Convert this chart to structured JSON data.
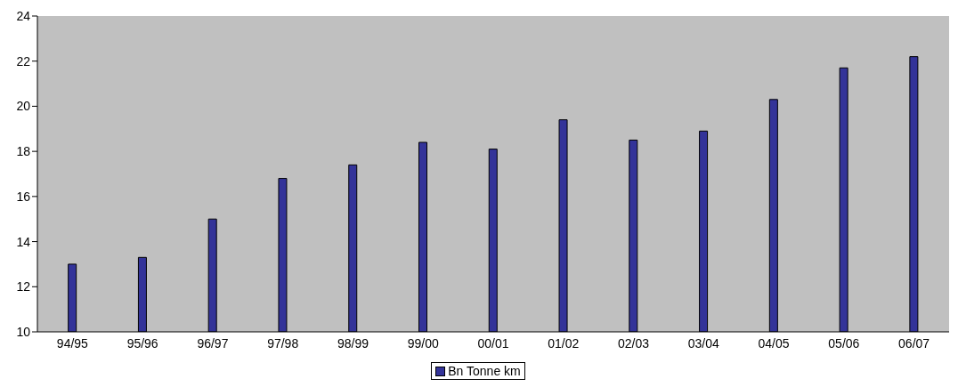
{
  "chart_data": {
    "type": "bar",
    "categories": [
      "94/95",
      "95/96",
      "96/97",
      "97/98",
      "98/99",
      "99/00",
      "00/01",
      "01/02",
      "02/03",
      "03/04",
      "04/05",
      "05/06",
      "06/07"
    ],
    "series": [
      {
        "name": "Bn Tonne km",
        "color": "#333399",
        "values": [
          13.0,
          13.3,
          15.0,
          16.8,
          17.4,
          18.4,
          18.1,
          19.4,
          18.5,
          18.9,
          20.3,
          21.7,
          22.2
        ]
      }
    ],
    "ylim": [
      10,
      24
    ],
    "yticks": [
      10,
      12,
      14,
      16,
      18,
      20,
      22,
      24
    ],
    "grid": false,
    "legend": "bottom"
  }
}
